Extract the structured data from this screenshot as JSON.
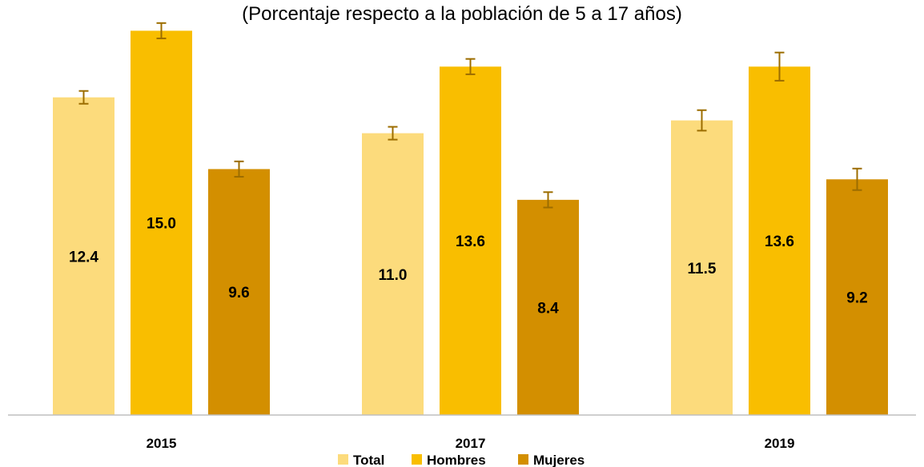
{
  "chart_data": {
    "type": "bar",
    "subtitle": "(Porcentaje respecto a la población de 5 a 17 años)",
    "categories": [
      "2015",
      "2017",
      "2019"
    ],
    "series": [
      {
        "name": "Total",
        "color": "#FCDB7C",
        "values": [
          12.4,
          11.0,
          11.5
        ],
        "error": [
          0.25,
          0.25,
          0.4
        ]
      },
      {
        "name": "Hombres",
        "color": "#F9BE00",
        "values": [
          15.0,
          13.6,
          13.6
        ],
        "error": [
          0.3,
          0.3,
          0.55
        ]
      },
      {
        "name": "Mujeres",
        "color": "#D38F00",
        "values": [
          9.6,
          8.4,
          9.2
        ],
        "error": [
          0.3,
          0.3,
          0.42
        ]
      }
    ],
    "value_labels": [
      [
        "12.4",
        "11.0",
        "11.5"
      ],
      [
        "15.0",
        "13.6",
        "13.6"
      ],
      [
        "9.6",
        "8.4",
        "9.2"
      ]
    ],
    "ylim": [
      0,
      16.2
    ],
    "grid": false,
    "legend_position": "bottom",
    "error_bar_color": "#9C6D00"
  }
}
